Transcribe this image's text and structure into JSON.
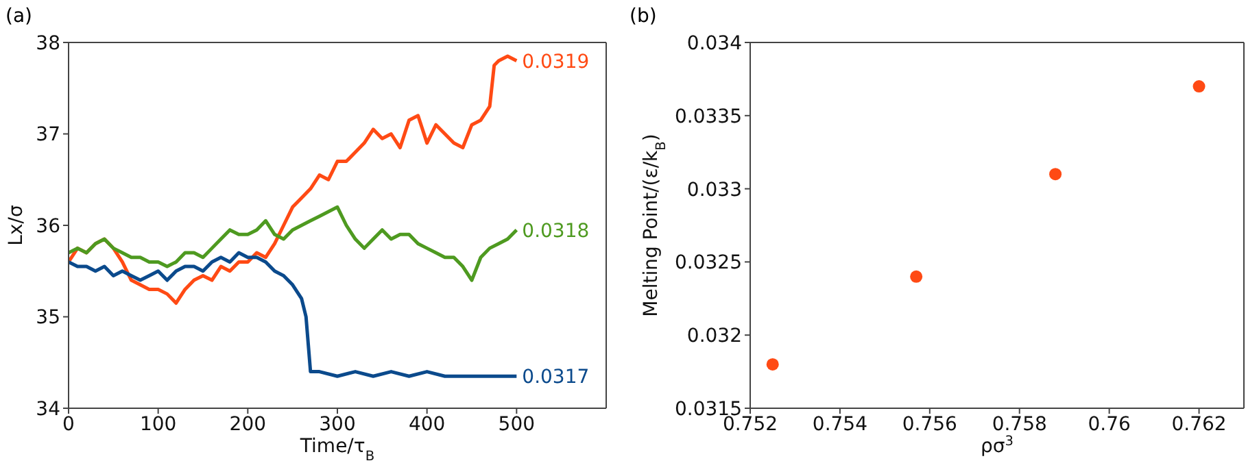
{
  "chart_data": [
    {
      "type": "line",
      "xlabel": "Time/τ$_{B}$",
      "ylabel": "Lx/σ",
      "xlim": [
        0,
        600
      ],
      "xticks": [
        0,
        100,
        200,
        300,
        400,
        500
      ],
      "ylim": [
        34,
        38
      ],
      "yticks": [
        34,
        35,
        36,
        37,
        38
      ],
      "marker": "none",
      "annotations": [
        "(a)"
      ],
      "series": [
        {
          "name": "0.0319",
          "color": "#ff4a14",
          "x": [
            0,
            10,
            20,
            30,
            40,
            50,
            60,
            70,
            80,
            90,
            100,
            110,
            120,
            130,
            140,
            150,
            160,
            170,
            180,
            190,
            200,
            210,
            220,
            230,
            240,
            250,
            260,
            270,
            280,
            290,
            300,
            310,
            320,
            330,
            340,
            350,
            360,
            370,
            380,
            390,
            400,
            410,
            420,
            430,
            440,
            450,
            460,
            470,
            475,
            480,
            490,
            500
          ],
          "values": [
            35.6,
            35.75,
            35.7,
            35.8,
            35.85,
            35.75,
            35.6,
            35.4,
            35.35,
            35.3,
            35.3,
            35.25,
            35.15,
            35.3,
            35.4,
            35.45,
            35.4,
            35.55,
            35.5,
            35.6,
            35.6,
            35.7,
            35.65,
            35.8,
            36.0,
            36.2,
            36.3,
            36.4,
            36.55,
            36.5,
            36.7,
            36.7,
            36.8,
            36.9,
            37.05,
            36.95,
            37.0,
            36.85,
            37.15,
            37.2,
            36.9,
            37.1,
            37.0,
            36.9,
            36.85,
            37.1,
            37.15,
            37.3,
            37.75,
            37.8,
            37.85,
            37.8
          ]
        },
        {
          "name": "0.0318",
          "color": "#4e9a20",
          "x": [
            0,
            10,
            20,
            30,
            40,
            50,
            60,
            70,
            80,
            90,
            100,
            110,
            120,
            130,
            140,
            150,
            160,
            170,
            180,
            190,
            200,
            210,
            220,
            230,
            240,
            250,
            260,
            270,
            280,
            290,
            300,
            310,
            320,
            330,
            340,
            350,
            360,
            370,
            380,
            390,
            400,
            410,
            420,
            430,
            440,
            450,
            460,
            470,
            480,
            490,
            500
          ],
          "values": [
            35.7,
            35.75,
            35.7,
            35.8,
            35.85,
            35.75,
            35.7,
            35.65,
            35.65,
            35.6,
            35.6,
            35.55,
            35.6,
            35.7,
            35.7,
            35.65,
            35.75,
            35.85,
            35.95,
            35.9,
            35.9,
            35.95,
            36.05,
            35.9,
            35.85,
            35.95,
            36.0,
            36.05,
            36.1,
            36.15,
            36.2,
            36.0,
            35.85,
            35.75,
            35.85,
            35.95,
            35.85,
            35.9,
            35.9,
            35.8,
            35.75,
            35.7,
            35.65,
            35.65,
            35.55,
            35.4,
            35.65,
            35.75,
            35.8,
            35.85,
            35.95
          ]
        },
        {
          "name": "0.0317",
          "color": "#0b4a8c",
          "x": [
            0,
            10,
            20,
            30,
            40,
            50,
            60,
            70,
            80,
            90,
            100,
            110,
            120,
            130,
            140,
            150,
            160,
            170,
            180,
            190,
            200,
            210,
            220,
            230,
            240,
            250,
            260,
            265,
            270,
            280,
            300,
            320,
            340,
            360,
            380,
            400,
            420,
            440,
            460,
            480,
            500
          ],
          "values": [
            35.6,
            35.55,
            35.55,
            35.5,
            35.55,
            35.45,
            35.5,
            35.45,
            35.4,
            35.45,
            35.5,
            35.4,
            35.5,
            35.55,
            35.55,
            35.5,
            35.6,
            35.65,
            35.6,
            35.7,
            35.65,
            35.65,
            35.6,
            35.5,
            35.45,
            35.35,
            35.2,
            35.0,
            34.4,
            34.4,
            34.35,
            34.4,
            34.35,
            34.4,
            34.35,
            34.4,
            34.35,
            34.35,
            34.35,
            34.35,
            34.35
          ]
        }
      ]
    },
    {
      "type": "scatter",
      "xlabel": "ρσ$^{3}$",
      "ylabel": "Melting Point/(ε/k$_{B}$)",
      "xlim": [
        0.752,
        0.763
      ],
      "xticks": [
        0.752,
        0.754,
        0.756,
        0.758,
        0.76,
        0.762
      ],
      "ylim": [
        0.0315,
        0.034
      ],
      "yticks": [
        0.0315,
        0.032,
        0.0325,
        0.033,
        0.0335,
        0.034
      ],
      "marker": "circle",
      "annotations": [
        "(b)"
      ],
      "series": [
        {
          "color": "#ff4a14",
          "x": [
            0.7525,
            0.7557,
            0.7588,
            0.762
          ],
          "values": [
            0.0318,
            0.0324,
            0.0331,
            0.0337
          ]
        }
      ]
    }
  ]
}
